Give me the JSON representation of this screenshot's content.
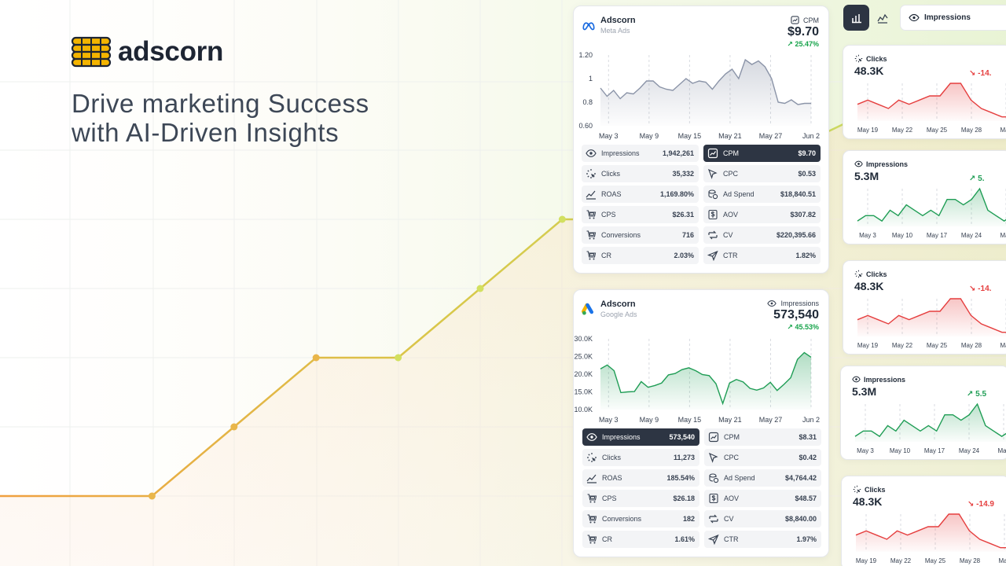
{
  "brand": {
    "name": "adscorn"
  },
  "hero": {
    "line1": "Drive marketing Success",
    "line2": "with AI-Driven Insights"
  },
  "background_trend": {
    "x": [
      0,
      1,
      2,
      3,
      4,
      5,
      6,
      7
    ],
    "y": [
      0,
      0,
      1,
      2,
      2,
      3,
      4,
      4
    ]
  },
  "meta_card": {
    "account": "Adscorn",
    "platform": "Meta Ads",
    "metric_label": "CPM",
    "metric_value": "$9.70",
    "metric_delta": "25.47%",
    "icon": "meta-logo-icon"
  },
  "google_card": {
    "account": "Adscorn",
    "platform": "Google Ads",
    "metric_label": "Impressions",
    "metric_value": "573,540",
    "metric_delta": "45.53%",
    "icon": "google-ads-logo-icon"
  },
  "chart_data": [
    {
      "type": "area",
      "series": [
        {
          "values": [
            0.92,
            0.85,
            0.9,
            0.83,
            0.88,
            0.87,
            0.92,
            0.98,
            0.98,
            0.93,
            0.91,
            0.9,
            0.95,
            1.0,
            0.96,
            0.98,
            0.97,
            0.91,
            0.98,
            1.04,
            1.08,
            1.0,
            1.16,
            1.12,
            1.15,
            1.1,
            1.0,
            0.8,
            0.79,
            0.82,
            0.78,
            0.79,
            0.79
          ]
        }
      ],
      "ylim": [
        0.6,
        1.2
      ],
      "yticks": [
        "1.20",
        "1",
        "0.8",
        "0.60"
      ],
      "xticks": [
        "May 3",
        "May 9",
        "May 15",
        "May 21",
        "May 27",
        "Jun 2"
      ],
      "color": "#8b94a8"
    },
    {
      "type": "area",
      "series": [
        {
          "values": [
            21500,
            22600,
            21000,
            14800,
            15000,
            15100,
            17900,
            16300,
            16800,
            17500,
            19800,
            20200,
            21300,
            21800,
            21000,
            19900,
            19600,
            17300,
            11700,
            17500,
            18500,
            17800,
            16000,
            15500,
            16100,
            17700,
            15400,
            17100,
            19000,
            24200,
            26100,
            24800
          ]
        }
      ],
      "ylim": [
        10000,
        30000
      ],
      "yticks": [
        "30.0K",
        "25.0K",
        "20.0K",
        "15.0K",
        "10.0K"
      ],
      "xticks": [
        "May 3",
        "May 9",
        "May 15",
        "May 21",
        "May 27",
        "Jun 2"
      ],
      "color": "#1f9d55"
    }
  ],
  "meta_stats": [
    {
      "label": "Impressions",
      "value": "1,942,261",
      "icon": "eye-icon",
      "active": false
    },
    {
      "label": "CPM",
      "value": "$9.70",
      "icon": "chart-square-icon",
      "active": true
    },
    {
      "label": "Clicks",
      "value": "35,332",
      "icon": "click-sparkle-icon",
      "active": false
    },
    {
      "label": "CPC",
      "value": "$0.53",
      "icon": "cursor-icon",
      "active": false
    },
    {
      "label": "ROAS",
      "value": "1,169.80%",
      "icon": "trend-line-icon",
      "active": false
    },
    {
      "label": "Ad Spend",
      "value": "$18,840.51",
      "icon": "coins-icon",
      "active": false
    },
    {
      "label": "CPS",
      "value": "$26.31",
      "icon": "cart-icon",
      "active": false
    },
    {
      "label": "AOV",
      "value": "$307.82",
      "icon": "dollar-doc-icon",
      "active": false
    },
    {
      "label": "Conversions",
      "value": "716",
      "icon": "cart-icon",
      "active": false
    },
    {
      "label": "CV",
      "value": "$220,395.66",
      "icon": "exchange-icon",
      "active": false
    },
    {
      "label": "CR",
      "value": "2.03%",
      "icon": "cart-icon",
      "active": false
    },
    {
      "label": "CTR",
      "value": "1.82%",
      "icon": "send-icon",
      "active": false
    }
  ],
  "google_stats": [
    {
      "label": "Impressions",
      "value": "573,540",
      "icon": "eye-icon",
      "active": true
    },
    {
      "label": "CPM",
      "value": "$8.31",
      "icon": "chart-square-icon",
      "active": false
    },
    {
      "label": "Clicks",
      "value": "11,273",
      "icon": "click-sparkle-icon",
      "active": false
    },
    {
      "label": "CPC",
      "value": "$0.42",
      "icon": "cursor-icon",
      "active": false
    },
    {
      "label": "ROAS",
      "value": "185.54%",
      "icon": "trend-line-icon",
      "active": false
    },
    {
      "label": "Ad Spend",
      "value": "$4,764.42",
      "icon": "coins-icon",
      "active": false
    },
    {
      "label": "CPS",
      "value": "$26.18",
      "icon": "cart-icon",
      "active": false
    },
    {
      "label": "AOV",
      "value": "$48.57",
      "icon": "dollar-doc-icon",
      "active": false
    },
    {
      "label": "Conversions",
      "value": "182",
      "icon": "cart-icon",
      "active": false
    },
    {
      "label": "CV",
      "value": "$8,840.00",
      "icon": "exchange-icon",
      "active": false
    },
    {
      "label": "CR",
      "value": "1.61%",
      "icon": "cart-icon",
      "active": false
    },
    {
      "label": "CTR",
      "value": "1.97%",
      "icon": "send-icon",
      "active": false
    }
  ],
  "toolbar": {
    "bar_chart_button": "bar-chart-icon",
    "line_chart_button": "line-chart-icon",
    "dropdown_label": "Impressions"
  },
  "side_cards": [
    {
      "title": "Clicks",
      "value": "48.3K",
      "delta": "-14.",
      "trend": "down",
      "color": "#e53e3e",
      "xticks": [
        "May 19",
        "May 22",
        "May 25",
        "May 28",
        "May"
      ],
      "series": [
        4,
        5,
        4,
        3,
        5,
        4,
        5,
        6,
        6,
        9,
        9,
        5,
        3,
        2,
        1,
        1
      ]
    },
    {
      "title": "Impressions",
      "value": "5.3M",
      "delta": "5.",
      "trend": "up",
      "color": "#1f9d55",
      "xticks": [
        "May 3",
        "May 10",
        "May 17",
        "May 24",
        "May"
      ],
      "series": [
        3,
        4,
        4,
        3,
        5,
        4,
        6,
        5,
        4,
        5,
        4,
        7,
        7,
        6,
        7,
        9,
        5,
        4,
        3,
        4
      ]
    },
    {
      "title": "Clicks",
      "value": "48.3K",
      "delta": "-14.",
      "trend": "down",
      "color": "#e53e3e",
      "xticks": [
        "May 19",
        "May 22",
        "May 25",
        "May 28",
        "May"
      ],
      "series": [
        4,
        5,
        4,
        3,
        5,
        4,
        5,
        6,
        6,
        9,
        9,
        5,
        3,
        2,
        1,
        1
      ]
    },
    {
      "title": "Impressions",
      "value": "5.3M",
      "delta": "5.5",
      "trend": "up",
      "color": "#1f9d55",
      "xticks": [
        "May 3",
        "May 10",
        "May 17",
        "May 24",
        "May"
      ],
      "series": [
        3,
        4,
        4,
        3,
        5,
        4,
        6,
        5,
        4,
        5,
        4,
        7,
        7,
        6,
        7,
        9,
        5,
        4,
        3,
        4
      ]
    },
    {
      "title": "Clicks",
      "value": "48.3K",
      "delta": "-14.9",
      "trend": "down",
      "color": "#e53e3e",
      "xticks": [
        "May 19",
        "May 22",
        "May 25",
        "May 28",
        "May"
      ],
      "series": [
        4,
        5,
        4,
        3,
        5,
        4,
        5,
        6,
        6,
        9,
        9,
        5,
        3,
        2,
        1,
        1
      ]
    }
  ]
}
